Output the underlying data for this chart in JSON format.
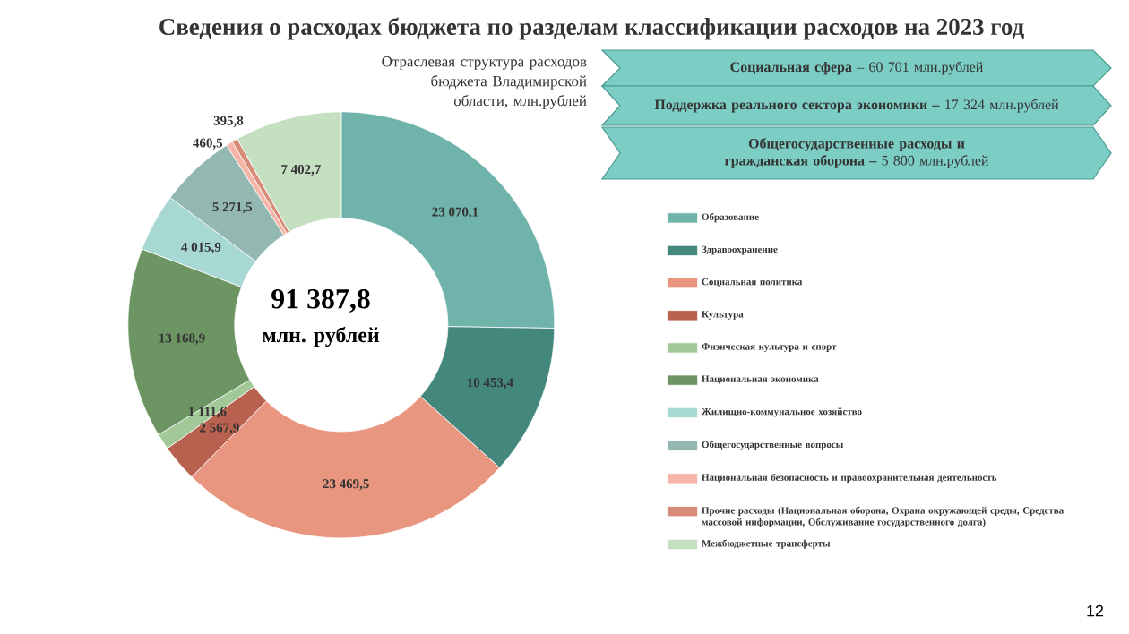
{
  "chart_data": {
    "type": "donut",
    "title": "Сведения о расходах бюджета по разделам классификации расходов на 2023 год",
    "subtitle": "Отраслевая структура расходов бюджета Владимирской области, млн.рублей",
    "categories": [
      "Образование",
      "Здравоохранение",
      "Социальная политика",
      "Культура",
      "Физическая культура и спорт",
      "Национальная экономика",
      "Жилищно-коммунальное хозяйство",
      "Общегосударственные вопросы",
      "Национальная безопасность и правоохранительная деятельность",
      "Прочие расходы (Национальная оборона, Охрана окружающей среды, Средства массовой информации, Обслуживание государственного долга)",
      "Межбюджетные трансферты"
    ],
    "values": [
      23070.1,
      10453.4,
      23469.5,
      2567.9,
      1111.6,
      13168.9,
      4015.9,
      5271.5,
      460.5,
      395.8,
      7402.7
    ],
    "value_labels": [
      "23 070,1",
      "10 453,4",
      "23 469,5",
      "2 567,9",
      "1 111,6",
      "13 168,9",
      "4 015,9",
      "5 271,5",
      "460,5",
      "395,8",
      "7 402,7"
    ],
    "colors": [
      "#6fb3aa",
      "#44877d",
      "#e8967f",
      "#b9614f",
      "#a1c896",
      "#6d9463",
      "#a7d8d4",
      "#93b8b1",
      "#f5b5a8",
      "#d78b78",
      "#c5e0c0"
    ],
    "legend": "right",
    "annotations": [
      "**Социальная сфера** – 60 701 млн.рублей",
      "**Поддержка реального сектора экономики –** 17 324 млн.рублей",
      "**Общегосударственные расходы и гражданская оборона –** 5 800 млн.рублей",
      "91 387,8",
      "млн. рублей",
      "12"
    ]
  }
}
